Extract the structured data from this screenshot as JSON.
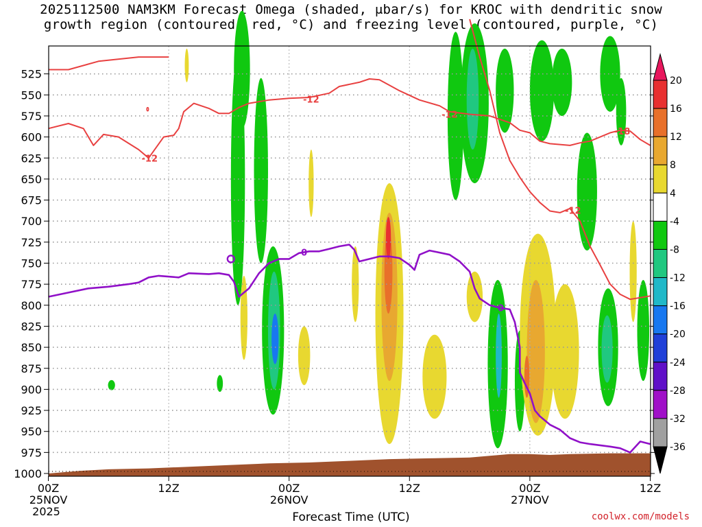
{
  "chart_data": {
    "type": "heatmap",
    "title": "2025112500 NAM3KM Forecast Omega (shaded, μbar/s) for KROC with dendritic snow",
    "subtitle": "growth region (contoured, red, °C) and freezing level (contoured, purple, °C)",
    "xlabel": "Forecast Time (UTC)",
    "ylabel": "",
    "x_range_hours": [
      0,
      60
    ],
    "y_range_hpa": [
      1000,
      500
    ],
    "y_ticks": [
      "525",
      "550",
      "575",
      "600",
      "625",
      "650",
      "675",
      "700",
      "725",
      "750",
      "775",
      "800",
      "825",
      "850",
      "875",
      "900",
      "925",
      "950",
      "975",
      "1000"
    ],
    "x_ticks": [
      {
        "hour": 0,
        "line1": "00Z",
        "line2": "25NOV",
        "line3": "2025"
      },
      {
        "hour": 12,
        "line1": "12Z",
        "line2": "",
        "line3": ""
      },
      {
        "hour": 24,
        "line1": "00Z",
        "line2": "26NOV",
        "line3": ""
      },
      {
        "hour": 36,
        "line1": "12Z",
        "line2": "",
        "line3": ""
      },
      {
        "hour": 48,
        "line1": "00Z",
        "line2": "27NOV",
        "line3": ""
      },
      {
        "hour": 60,
        "line1": "12Z",
        "line2": "",
        "line3": ""
      }
    ],
    "colorbar": {
      "labels": [
        "20",
        "16",
        "12",
        "8",
        "4",
        "-4",
        "-8",
        "-12",
        "-16",
        "-20",
        "-24",
        "-28",
        "-32",
        "-36"
      ],
      "colors": [
        "#e8175d",
        "#e83030",
        "#e8702a",
        "#e8a830",
        "#e8d830",
        "#ffffff",
        "#10c810",
        "#20c880",
        "#20b8c8",
        "#1878f0",
        "#2040d8",
        "#6010c8",
        "#a010c8",
        "#a0a0a0",
        "#000000"
      ]
    },
    "contour_labels": {
      "dgz_minus12": "-12",
      "freezing_zero": "0",
      "dgz_minus18": "-18"
    },
    "dgz_red_line_upper": [
      [
        0,
        520
      ],
      [
        2,
        520
      ],
      [
        5,
        510
      ],
      [
        9,
        505
      ],
      [
        12,
        505
      ]
    ],
    "dgz_red_line_main": [
      [
        0,
        590
      ],
      [
        2,
        584
      ],
      [
        3.5,
        590
      ],
      [
        4.5,
        610
      ],
      [
        5.5,
        597
      ],
      [
        7,
        600
      ],
      [
        9,
        615
      ],
      [
        10,
        625
      ],
      [
        11.5,
        600
      ],
      [
        12.5,
        598
      ],
      [
        13,
        590
      ],
      [
        13.5,
        570
      ],
      [
        14.5,
        560
      ],
      [
        16,
        566
      ],
      [
        17,
        572
      ],
      [
        18,
        572
      ],
      [
        19,
        565
      ],
      [
        20,
        560
      ],
      [
        22,
        556
      ],
      [
        24,
        554
      ],
      [
        26,
        553
      ],
      [
        28,
        548
      ],
      [
        29,
        540
      ],
      [
        31,
        535
      ],
      [
        32,
        531
      ],
      [
        33,
        532
      ],
      [
        35,
        545
      ],
      [
        37,
        556
      ],
      [
        39,
        563
      ],
      [
        40,
        570
      ],
      [
        42,
        573
      ],
      [
        44,
        575
      ],
      [
        46,
        583
      ],
      [
        47,
        592
      ],
      [
        48,
        595
      ],
      [
        49,
        605
      ],
      [
        50,
        608
      ],
      [
        52,
        610
      ],
      [
        53,
        607
      ],
      [
        54,
        605
      ],
      [
        56,
        595
      ],
      [
        57,
        592
      ],
      [
        58,
        593
      ],
      [
        59,
        603
      ],
      [
        60,
        610
      ]
    ],
    "dgz_red_line_lower": [
      [
        42,
        460
      ],
      [
        43,
        505
      ],
      [
        44,
        545
      ],
      [
        45,
        595
      ],
      [
        46,
        628
      ],
      [
        47,
        648
      ],
      [
        48,
        665
      ],
      [
        49,
        678
      ],
      [
        50,
        688
      ],
      [
        51,
        690
      ],
      [
        52,
        685
      ],
      [
        53,
        700
      ],
      [
        54,
        730
      ],
      [
        55,
        752
      ],
      [
        56,
        775
      ],
      [
        57,
        787
      ],
      [
        58,
        793
      ],
      [
        60,
        789
      ]
    ],
    "freezing_line": [
      [
        0,
        790
      ],
      [
        2,
        785
      ],
      [
        4,
        780
      ],
      [
        6,
        778
      ],
      [
        8,
        775
      ],
      [
        9,
        773
      ],
      [
        10,
        767
      ],
      [
        11,
        765
      ],
      [
        13,
        767
      ],
      [
        14,
        762
      ],
      [
        16,
        763
      ],
      [
        17,
        762
      ],
      [
        18,
        764
      ],
      [
        18.5,
        772
      ],
      [
        19,
        790
      ],
      [
        20,
        780
      ],
      [
        21,
        762
      ],
      [
        22,
        750
      ],
      [
        23,
        745
      ],
      [
        24,
        745
      ],
      [
        25,
        738
      ],
      [
        26,
        736
      ],
      [
        27,
        736
      ],
      [
        28,
        733
      ],
      [
        29,
        730
      ],
      [
        30,
        728
      ],
      [
        30.5,
        734
      ],
      [
        31,
        748
      ],
      [
        32,
        745
      ],
      [
        33,
        742
      ],
      [
        34,
        742
      ],
      [
        35,
        744
      ],
      [
        36,
        752
      ],
      [
        36.5,
        758
      ],
      [
        37,
        740
      ],
      [
        38,
        735
      ],
      [
        40,
        740
      ],
      [
        41,
        748
      ],
      [
        42,
        760
      ],
      [
        42.5,
        780
      ],
      [
        43,
        792
      ],
      [
        44,
        800
      ],
      [
        45,
        803
      ],
      [
        46,
        805
      ],
      [
        46.5,
        820
      ],
      [
        47,
        850
      ],
      [
        47,
        880
      ],
      [
        47.5,
        893
      ],
      [
        48,
        905
      ],
      [
        48.5,
        925
      ],
      [
        49,
        932
      ],
      [
        50,
        942
      ],
      [
        51,
        948
      ],
      [
        52,
        958
      ],
      [
        53,
        963
      ],
      [
        54,
        965
      ],
      [
        56,
        968
      ],
      [
        57,
        970
      ],
      [
        58,
        975
      ],
      [
        59,
        962
      ],
      [
        60,
        965
      ]
    ],
    "ground_line": [
      [
        0,
        1000
      ],
      [
        3,
        997
      ],
      [
        6,
        995
      ],
      [
        10,
        994
      ],
      [
        14,
        992
      ],
      [
        18,
        990
      ],
      [
        22,
        988
      ],
      [
        26,
        987
      ],
      [
        30,
        985
      ],
      [
        34,
        983
      ],
      [
        38,
        982
      ],
      [
        42,
        981
      ],
      [
        44,
        979
      ],
      [
        46,
        977
      ],
      [
        48,
        977
      ],
      [
        50,
        978
      ],
      [
        52,
        977
      ],
      [
        56,
        976
      ],
      [
        60,
        976
      ]
    ],
    "omega_regions": [
      {
        "value": -6,
        "x": 18.9,
        "p": 650,
        "dx": 0.7,
        "dp": 150
      },
      {
        "value": -6,
        "x": 19.3,
        "p": 520,
        "dx": 0.8,
        "dp": 70
      },
      {
        "value": -6,
        "x": 21.2,
        "p": 640,
        "dx": 0.7,
        "dp": 110
      },
      {
        "value": -6,
        "x": 22.4,
        "p": 830,
        "dx": 1.1,
        "dp": 100
      },
      {
        "value": -10,
        "x": 22.5,
        "p": 830,
        "dx": 0.6,
        "dp": 70
      },
      {
        "value": -16,
        "x": 22.6,
        "p": 840,
        "dx": 0.35,
        "dp": 30
      },
      {
        "value": 6,
        "x": 26.2,
        "p": 655,
        "dx": 0.25,
        "dp": 40
      },
      {
        "value": 6,
        "x": 19.5,
        "p": 815,
        "dx": 0.35,
        "dp": 50
      },
      {
        "value": 6,
        "x": 25.5,
        "p": 860,
        "dx": 0.6,
        "dp": 35
      },
      {
        "value": 6,
        "x": 30.6,
        "p": 775,
        "dx": 0.35,
        "dp": 45
      },
      {
        "value": 6,
        "x": 34,
        "p": 810,
        "dx": 1.4,
        "dp": 155
      },
      {
        "value": 10,
        "x": 34,
        "p": 790,
        "dx": 0.8,
        "dp": 100
      },
      {
        "value": 14,
        "x": 33.9,
        "p": 760,
        "dx": 0.4,
        "dp": 50
      },
      {
        "value": 18,
        "x": 33.9,
        "p": 720,
        "dx": 0.25,
        "dp": 25
      },
      {
        "value": 6,
        "x": 38.5,
        "p": 885,
        "dx": 1.2,
        "dp": 50
      },
      {
        "value": 6,
        "x": 42.5,
        "p": 790,
        "dx": 0.8,
        "dp": 30
      },
      {
        "value": -6,
        "x": 40.6,
        "p": 575,
        "dx": 0.8,
        "dp": 100
      },
      {
        "value": -6,
        "x": 42.5,
        "p": 560,
        "dx": 1.4,
        "dp": 95
      },
      {
        "value": -10,
        "x": 42.3,
        "p": 555,
        "dx": 0.6,
        "dp": 60
      },
      {
        "value": -6,
        "x": 45.5,
        "p": 545,
        "dx": 0.9,
        "dp": 50
      },
      {
        "value": -6,
        "x": 44.8,
        "p": 870,
        "dx": 1.0,
        "dp": 100
      },
      {
        "value": -12,
        "x": 44.9,
        "p": 860,
        "dx": 0.3,
        "dp": 50
      },
      {
        "value": -6,
        "x": 47,
        "p": 890,
        "dx": 0.5,
        "dp": 60
      },
      {
        "value": 6,
        "x": 48.8,
        "p": 835,
        "dx": 1.8,
        "dp": 120
      },
      {
        "value": 10,
        "x": 48.6,
        "p": 855,
        "dx": 0.9,
        "dp": 85
      },
      {
        "value": 14,
        "x": 47.7,
        "p": 885,
        "dx": 0.25,
        "dp": 25
      },
      {
        "value": 6,
        "x": 51.5,
        "p": 855,
        "dx": 1.4,
        "dp": 80
      },
      {
        "value": -6,
        "x": 49.2,
        "p": 545,
        "dx": 1.2,
        "dp": 60
      },
      {
        "value": -6,
        "x": 51.2,
        "p": 535,
        "dx": 1.0,
        "dp": 40
      },
      {
        "value": -6,
        "x": 53.7,
        "p": 665,
        "dx": 1.0,
        "dp": 70
      },
      {
        "value": -6,
        "x": 56,
        "p": 525,
        "dx": 1.0,
        "dp": 45
      },
      {
        "value": -6,
        "x": 57.1,
        "p": 570,
        "dx": 0.5,
        "dp": 40
      },
      {
        "value": -6,
        "x": 55.8,
        "p": 850,
        "dx": 1.0,
        "dp": 70
      },
      {
        "value": -10,
        "x": 55.7,
        "p": 852,
        "dx": 0.55,
        "dp": 40
      },
      {
        "value": -6,
        "x": 59.3,
        "p": 830,
        "dx": 0.6,
        "dp": 60
      },
      {
        "value": 6,
        "x": 58.3,
        "p": 760,
        "dx": 0.35,
        "dp": 60
      },
      {
        "value": 6,
        "x": 13.8,
        "p": 515,
        "dx": 0.2,
        "dp": 20
      },
      {
        "value": -6,
        "x": 6.3,
        "p": 895,
        "dx": 0.35,
        "dp": 6
      },
      {
        "value": -6,
        "x": 17.1,
        "p": 893,
        "dx": 0.3,
        "dp": 10
      }
    ]
  },
  "credit": "coolwx.com/models",
  "colors": {
    "dgz": "#e84040",
    "freezing": "#9010c8",
    "ground": "#a0522d",
    "grid": "#999999"
  }
}
